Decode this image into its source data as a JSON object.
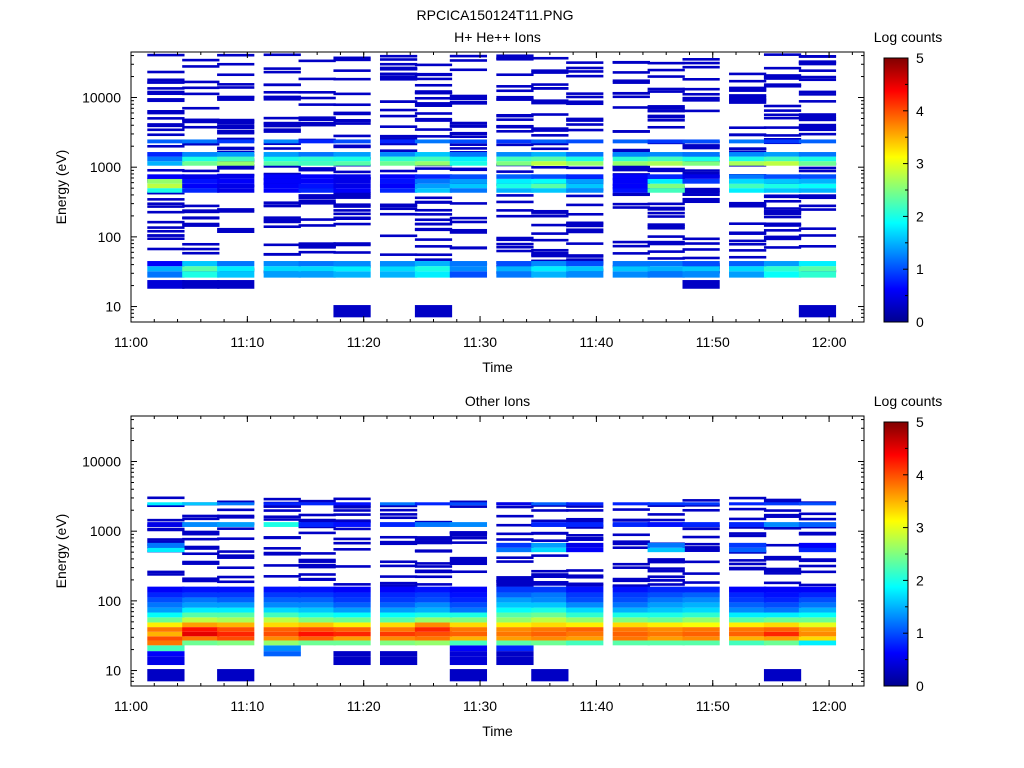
{
  "figure_title": "RPCICA150124T11.PNG",
  "colormap": [
    "#00008f",
    "#0000ff",
    "#0080ff",
    "#00ffff",
    "#80ff80",
    "#ffff00",
    "#ff8000",
    "#ff0000",
    "#800000"
  ],
  "chart_data": [
    {
      "type": "heatmap",
      "title": "H+ He++ Ions",
      "xlabel": "Time",
      "ylabel": "Energy (eV)",
      "yscale": "log",
      "ylim": [
        6,
        45000
      ],
      "xlim": [
        "11:00",
        "12:03"
      ],
      "xticks": [
        "11:00",
        "11:10",
        "11:20",
        "11:30",
        "11:40",
        "11:50",
        "12:00"
      ],
      "yticks": [
        10,
        100,
        1000,
        10000
      ],
      "colorbar": {
        "label": "Log counts",
        "range": [
          0,
          5
        ],
        "ticks": [
          0,
          1,
          2,
          3,
          4,
          5
        ]
      },
      "time_columns": [
        "11:03",
        "11:06",
        "11:09",
        "11:13",
        "11:16",
        "11:19",
        "11:23",
        "11:26",
        "11:29",
        "11:33",
        "11:36",
        "11:39",
        "11:43",
        "11:46",
        "11:49",
        "11:53",
        "11:56",
        "11:59"
      ],
      "time_width_min": 3.2,
      "bands": [
        {
          "e_low": 26,
          "e_high": 32,
          "values": [
            1.2,
            2.0,
            1.6,
            1.4,
            1.4,
            1.5,
            1.5,
            1.8,
            1.0,
            1.2,
            1.5,
            1.3,
            1.3,
            1.2,
            1.3,
            1.4,
            1.9,
            2.1
          ]
        },
        {
          "e_low": 32,
          "e_high": 38,
          "values": [
            1.5,
            2.3,
            1.8,
            1.7,
            1.7,
            1.8,
            1.7,
            2.0,
            1.3,
            1.5,
            1.8,
            1.6,
            1.6,
            1.5,
            1.6,
            1.7,
            2.1,
            2.3
          ]
        },
        {
          "e_low": 38,
          "e_high": 45,
          "values": [
            0.6,
            1.6,
            1.2,
            1.3,
            1.2,
            1.3,
            1.3,
            1.5,
            1.2,
            1.0,
            1.3,
            1.0,
            1.2,
            1.2,
            1.0,
            1.1,
            1.4,
            1.8
          ]
        },
        {
          "e_low": 430,
          "e_high": 500,
          "values": [
            2.0,
            0.8,
            0.5,
            0.6,
            0.8,
            0.6,
            0.8,
            1.6,
            1.2,
            1.5,
            1.6,
            1.3,
            0.7,
            2.2,
            0,
            1.8,
            1.6,
            1.5
          ]
        },
        {
          "e_low": 500,
          "e_high": 580,
          "values": [
            2.8,
            0.6,
            0.5,
            0.6,
            0.7,
            0.5,
            0.6,
            1.4,
            1.6,
            2.0,
            2.3,
            1.6,
            0.6,
            2.5,
            0,
            2.2,
            2.0,
            1.9
          ]
        },
        {
          "e_low": 580,
          "e_high": 680,
          "values": [
            2.6,
            0.7,
            0.6,
            0.6,
            0.6,
            0.5,
            0.7,
            1.2,
            1.4,
            1.8,
            1.9,
            1.4,
            0.6,
            1.8,
            0.9,
            1.7,
            1.6,
            1.5
          ]
        },
        {
          "e_low": 680,
          "e_high": 790,
          "values": [
            0.6,
            0.5,
            0.5,
            0.6,
            0.6,
            0.5,
            0.6,
            0.8,
            1.0,
            1.1,
            1.0,
            0.8,
            0.6,
            0.8,
            0.5,
            1.2,
            1.0,
            1.0
          ]
        },
        {
          "e_low": 1050,
          "e_high": 1220,
          "values": [
            1.5,
            2.4,
            2.6,
            2.3,
            2.2,
            2.3,
            2.4,
            2.6,
            2.0,
            2.5,
            2.8,
            2.6,
            2.6,
            2.7,
            2.5,
            2.7,
            2.8,
            2.4
          ]
        },
        {
          "e_low": 1220,
          "e_high": 1420,
          "values": [
            1.2,
            2.0,
            2.2,
            2.0,
            2.1,
            2.0,
            2.1,
            2.2,
            1.8,
            2.2,
            2.3,
            2.0,
            2.1,
            2.2,
            2.0,
            2.0,
            2.2,
            2.0
          ]
        },
        {
          "e_low": 1420,
          "e_high": 1650,
          "values": [
            0.8,
            1.3,
            1.4,
            1.4,
            1.2,
            1.4,
            1.3,
            1.6,
            1.2,
            1.3,
            1.5,
            1.2,
            1.3,
            1.3,
            1.2,
            1.3,
            1.4,
            1.2
          ]
        },
        {
          "e_low": 2200,
          "e_high": 2500,
          "values": [
            1.1,
            1.2,
            0.9,
            1.3,
            0.8,
            1.0,
            0.8,
            1.2,
            1.0,
            0.9,
            1.1,
            1.0,
            1.1,
            0.9,
            1.0,
            1.2,
            0.9,
            1.1
          ]
        },
        {
          "e_low": 18,
          "e_high": 24,
          "values": [
            0.4,
            0.3,
            0.3,
            0,
            0,
            0,
            0,
            0,
            0,
            0,
            0,
            0,
            0,
            0,
            0.3,
            0,
            0,
            0
          ]
        },
        {
          "e_low": 7,
          "e_high": 10.5,
          "values": [
            0,
            0,
            0,
            0,
            0,
            0.3,
            0,
            0.3,
            0,
            0,
            0,
            0,
            0,
            0,
            0,
            0,
            0,
            0.3
          ]
        }
      ],
      "sparse_lines": {
        "e_min": 30,
        "e_max": 42000,
        "level": 0.3
      }
    },
    {
      "type": "heatmap",
      "title": "Other Ions",
      "xlabel": "Time",
      "ylabel": "Energy (eV)",
      "yscale": "log",
      "ylim": [
        6,
        45000
      ],
      "xlim": [
        "11:00",
        "12:03"
      ],
      "xticks": [
        "11:00",
        "11:10",
        "11:20",
        "11:30",
        "11:40",
        "11:50",
        "12:00"
      ],
      "yticks": [
        10,
        100,
        1000,
        10000
      ],
      "colorbar": {
        "label": "Log counts",
        "range": [
          0,
          5
        ],
        "ticks": [
          0,
          1,
          2,
          3,
          4,
          5
        ]
      },
      "time_columns": [
        "11:03",
        "11:06",
        "11:09",
        "11:13",
        "11:16",
        "11:19",
        "11:23",
        "11:26",
        "11:29",
        "11:33",
        "11:36",
        "11:39",
        "11:43",
        "11:46",
        "11:49",
        "11:53",
        "11:56",
        "11:59"
      ],
      "time_width_min": 3.2,
      "bands": [
        {
          "e_low": 12,
          "e_high": 16,
          "values": [
            0.5,
            0,
            0,
            0,
            0,
            0.3,
            0.3,
            0,
            0.4,
            0.3,
            0,
            0,
            0,
            0,
            0,
            0,
            0,
            0
          ]
        },
        {
          "e_low": 16,
          "e_high": 19,
          "values": [
            0.6,
            0,
            0,
            1.1,
            0,
            0.3,
            0.3,
            0,
            0.4,
            0.3,
            0,
            0,
            0,
            0,
            0,
            0,
            0,
            0
          ]
        },
        {
          "e_low": 19,
          "e_high": 23,
          "values": [
            2.2,
            0,
            0,
            1.3,
            0,
            0,
            0,
            0,
            0.6,
            0.8,
            0,
            0,
            0,
            0,
            0,
            0,
            0,
            0
          ]
        },
        {
          "e_low": 23,
          "e_high": 27,
          "values": [
            3.8,
            2.4,
            2.5,
            2.6,
            2.4,
            2.4,
            2.5,
            2.6,
            2.2,
            2.3,
            2.4,
            2.2,
            2.3,
            2.3,
            2.3,
            2.2,
            2.4,
            1.8
          ]
        },
        {
          "e_low": 27,
          "e_high": 31,
          "values": [
            4.0,
            3.8,
            4.0,
            3.7,
            3.9,
            3.6,
            3.7,
            3.8,
            3.5,
            3.6,
            3.7,
            3.6,
            3.8,
            3.6,
            3.7,
            3.5,
            3.6,
            3.3
          ]
        },
        {
          "e_low": 31,
          "e_high": 36,
          "values": [
            3.5,
            4.5,
            4.2,
            4.0,
            4.3,
            4.2,
            4.1,
            4.0,
            3.9,
            3.8,
            3.9,
            3.8,
            3.9,
            3.8,
            3.9,
            3.9,
            4.2,
            3.7
          ]
        },
        {
          "e_low": 36,
          "e_high": 42,
          "values": [
            3.8,
            4.3,
            4.0,
            3.9,
            4.0,
            3.9,
            3.8,
            4.2,
            3.8,
            3.7,
            3.8,
            3.9,
            3.8,
            3.7,
            3.8,
            3.8,
            3.9,
            3.6
          ]
        },
        {
          "e_low": 42,
          "e_high": 49,
          "values": [
            3.2,
            3.6,
            3.5,
            3.3,
            3.4,
            3.2,
            3.3,
            3.7,
            3.3,
            3.2,
            3.3,
            3.2,
            3.3,
            3.2,
            3.1,
            3.2,
            3.3,
            3.0
          ]
        },
        {
          "e_low": 49,
          "e_high": 58,
          "values": [
            2.4,
            2.8,
            2.7,
            2.8,
            2.5,
            2.4,
            2.3,
            2.6,
            2.5,
            2.6,
            2.8,
            2.6,
            2.5,
            2.4,
            2.6,
            2.3,
            2.4,
            2.4
          ]
        },
        {
          "e_low": 58,
          "e_high": 68,
          "values": [
            1.9,
            2.3,
            2.3,
            2.2,
            2.0,
            1.9,
            1.9,
            2.0,
            2.0,
            2.3,
            2.4,
            2.1,
            2.0,
            2.0,
            2.1,
            1.8,
            1.8,
            1.9
          ]
        },
        {
          "e_low": 68,
          "e_high": 80,
          "values": [
            1.4,
            1.8,
            1.8,
            1.7,
            1.6,
            1.4,
            1.4,
            1.5,
            1.2,
            1.9,
            2.0,
            1.7,
            1.5,
            1.6,
            1.7,
            1.3,
            1.2,
            1.5
          ]
        },
        {
          "e_low": 80,
          "e_high": 95,
          "values": [
            1.2,
            1.4,
            1.4,
            1.3,
            1.3,
            1.1,
            1.1,
            1.3,
            1.0,
            1.6,
            1.6,
            1.3,
            1.2,
            1.4,
            1.5,
            1.1,
            1.0,
            1.2
          ]
        },
        {
          "e_low": 95,
          "e_high": 112,
          "values": [
            1.0,
            1.2,
            1.1,
            1.1,
            1.1,
            0.9,
            0.9,
            1.0,
            0.8,
            1.4,
            1.3,
            1.0,
            1.0,
            1.2,
            1.3,
            0.9,
            0.8,
            1.0
          ]
        },
        {
          "e_low": 112,
          "e_high": 132,
          "values": [
            0.8,
            0.9,
            0.9,
            0.9,
            0.9,
            0.8,
            0.8,
            0.9,
            0.7,
            1.1,
            1.2,
            0.9,
            0.9,
            1.0,
            1.1,
            0.8,
            0.7,
            0.8
          ]
        },
        {
          "e_low": 132,
          "e_high": 160,
          "values": [
            0.6,
            0.7,
            0.7,
            0.7,
            0.7,
            0.6,
            0.6,
            0.7,
            0.6,
            0.9,
            0.9,
            0.7,
            0.7,
            0.8,
            0.8,
            0.6,
            0.6,
            0.6
          ]
        },
        {
          "e_low": 2350,
          "e_high": 2600,
          "values": [
            1.8,
            1.6,
            1.2,
            0.8,
            0.8,
            0.7,
            1.2,
            0.8,
            1.0,
            0.5,
            1.1,
            0.8,
            0.8,
            0.9,
            0.9,
            0.8,
            0.9,
            1.0
          ]
        },
        {
          "e_low": 1150,
          "e_high": 1350,
          "values": [
            0.5,
            1.3,
            1.4,
            2.0,
            0.8,
            0.7,
            0.8,
            1.2,
            1.3,
            0,
            0.8,
            0.8,
            0.8,
            0.7,
            0.8,
            0.8,
            1.3,
            1.1
          ]
        },
        {
          "e_low": 500,
          "e_high": 580,
          "values": [
            1.8,
            0,
            0,
            0,
            0,
            0,
            0,
            0,
            0,
            1.2,
            1.7,
            0.6,
            0,
            1.6,
            0,
            1.1,
            0,
            0.8
          ]
        },
        {
          "e_low": 580,
          "e_high": 680,
          "values": [
            1.2,
            0,
            0,
            0,
            0,
            0,
            0,
            0,
            0,
            0.9,
            1.4,
            0.5,
            0,
            1.2,
            0,
            0.9,
            0,
            0.6
          ]
        },
        {
          "e_low": 7,
          "e_high": 10.5,
          "values": [
            0.3,
            0,
            0.3,
            0,
            0,
            0,
            0,
            0,
            0.3,
            0,
            0.3,
            0,
            0,
            0,
            0,
            0,
            0.3,
            0
          ]
        }
      ],
      "sparse_lines": {
        "e_min": 160,
        "e_max": 3200,
        "level": 0.3
      }
    }
  ]
}
